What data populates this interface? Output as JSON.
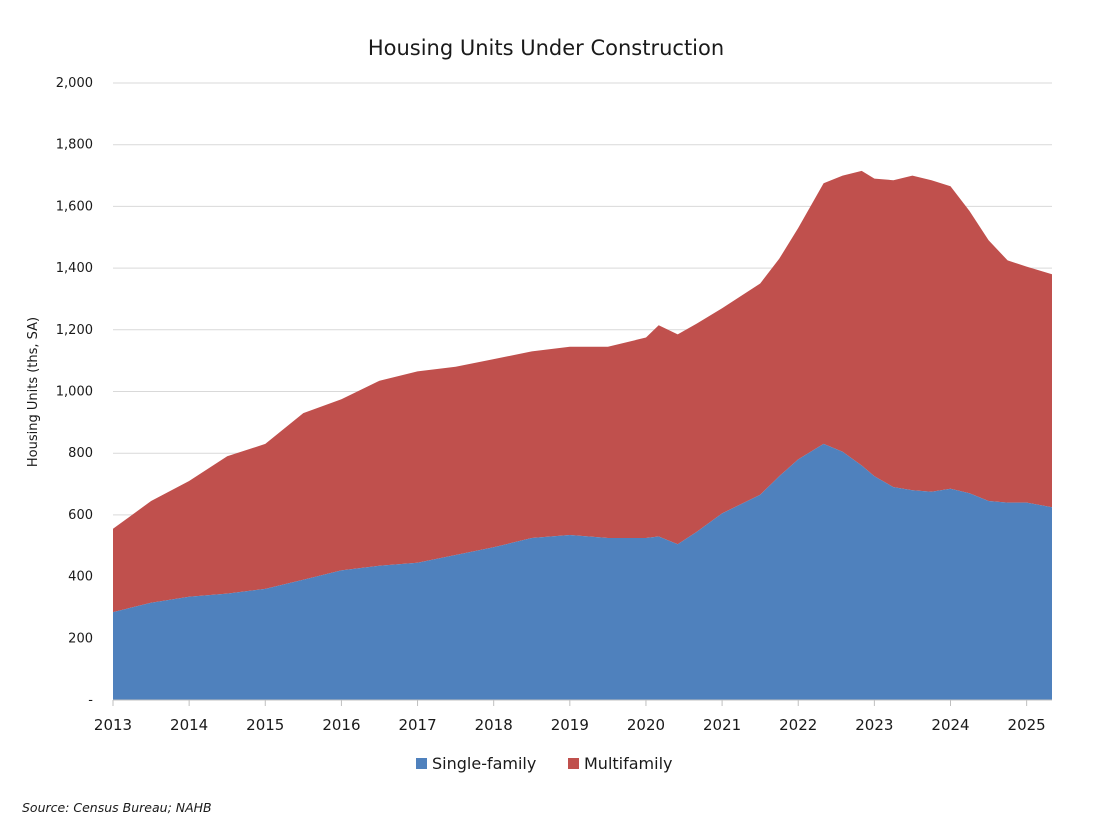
{
  "chart_data": {
    "type": "area",
    "stacked": true,
    "title": "Housing Units Under Construction",
    "ylabel": "Housing Units (ths, SA)",
    "xlabel": "",
    "ylim": [
      0,
      2000
    ],
    "yticks": [
      {
        "value": 0,
        "label": "-"
      },
      {
        "value": 200,
        "label": "200"
      },
      {
        "value": 400,
        "label": "400"
      },
      {
        "value": 600,
        "label": "600"
      },
      {
        "value": 800,
        "label": "800"
      },
      {
        "value": 1000,
        "label": "1,000"
      },
      {
        "value": 1200,
        "label": "1,200"
      },
      {
        "value": 1400,
        "label": "1,400"
      },
      {
        "value": 1600,
        "label": "1,600"
      },
      {
        "value": 1800,
        "label": "1,800"
      },
      {
        "value": 2000,
        "label": "2,000"
      }
    ],
    "xlim": [
      2013.0,
      2025.333
    ],
    "xticks": [
      "2013",
      "2014",
      "2015",
      "2016",
      "2017",
      "2018",
      "2019",
      "2020",
      "2021",
      "2022",
      "2023",
      "2024",
      "2025"
    ],
    "grid": true,
    "legend_position": "bottom",
    "colors": {
      "Single-family": "#4f81bd",
      "Multifamily": "#c0504d"
    },
    "series": [
      {
        "name": "Single-family",
        "points": [
          [
            2013.0,
            285
          ],
          [
            2013.5,
            315
          ],
          [
            2014.0,
            335
          ],
          [
            2014.5,
            345
          ],
          [
            2015.0,
            360
          ],
          [
            2015.5,
            390
          ],
          [
            2016.0,
            420
          ],
          [
            2016.5,
            435
          ],
          [
            2017.0,
            445
          ],
          [
            2017.5,
            470
          ],
          [
            2018.0,
            495
          ],
          [
            2018.5,
            525
          ],
          [
            2019.0,
            535
          ],
          [
            2019.5,
            525
          ],
          [
            2020.0,
            525
          ],
          [
            2020.167,
            530
          ],
          [
            2020.417,
            505
          ],
          [
            2020.667,
            545
          ],
          [
            2021.0,
            605
          ],
          [
            2021.5,
            665
          ],
          [
            2021.75,
            725
          ],
          [
            2022.0,
            780
          ],
          [
            2022.333,
            830
          ],
          [
            2022.583,
            805
          ],
          [
            2022.833,
            760
          ],
          [
            2023.0,
            725
          ],
          [
            2023.25,
            690
          ],
          [
            2023.5,
            680
          ],
          [
            2023.75,
            675
          ],
          [
            2024.0,
            685
          ],
          [
            2024.25,
            670
          ],
          [
            2024.5,
            645
          ],
          [
            2024.75,
            640
          ],
          [
            2025.0,
            640
          ],
          [
            2025.333,
            625
          ]
        ]
      },
      {
        "name": "Multifamily",
        "points": [
          [
            2013.0,
            270
          ],
          [
            2013.5,
            330
          ],
          [
            2014.0,
            375
          ],
          [
            2014.5,
            445
          ],
          [
            2015.0,
            470
          ],
          [
            2015.5,
            540
          ],
          [
            2016.0,
            555
          ],
          [
            2016.5,
            600
          ],
          [
            2017.0,
            620
          ],
          [
            2017.5,
            610
          ],
          [
            2018.0,
            610
          ],
          [
            2018.5,
            605
          ],
          [
            2019.0,
            610
          ],
          [
            2019.5,
            620
          ],
          [
            2020.0,
            650
          ],
          [
            2020.167,
            685
          ],
          [
            2020.417,
            680
          ],
          [
            2020.667,
            675
          ],
          [
            2021.0,
            665
          ],
          [
            2021.5,
            685
          ],
          [
            2021.75,
            705
          ],
          [
            2022.0,
            750
          ],
          [
            2022.333,
            845
          ],
          [
            2022.583,
            895
          ],
          [
            2022.833,
            955
          ],
          [
            2023.0,
            965
          ],
          [
            2023.25,
            995
          ],
          [
            2023.5,
            1020
          ],
          [
            2023.75,
            1010
          ],
          [
            2024.0,
            980
          ],
          [
            2024.25,
            915
          ],
          [
            2024.5,
            845
          ],
          [
            2024.75,
            785
          ],
          [
            2025.0,
            765
          ],
          [
            2025.333,
            755
          ]
        ]
      }
    ],
    "source": "Source: Census Bureau; NAHB"
  }
}
